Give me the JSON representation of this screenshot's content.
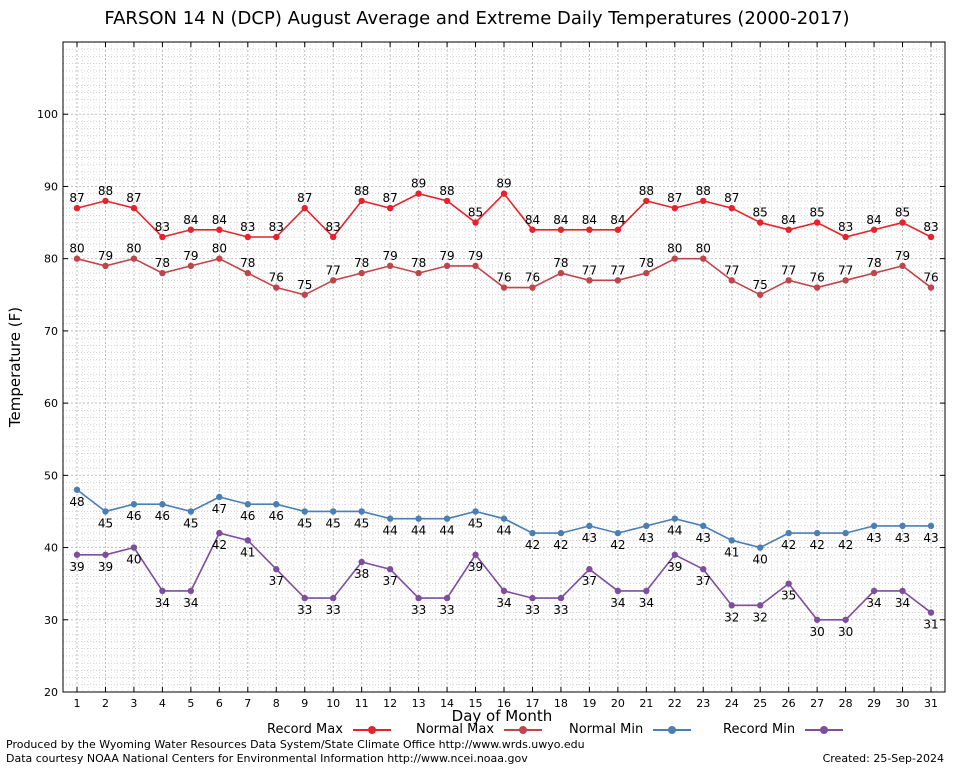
{
  "chart_data": {
    "type": "line",
    "title": "FARSON 14 N (DCP) August Average and Extreme Daily Temperatures (2000-2017)",
    "xlabel": "Day of Month",
    "ylabel": "Temperature (F)",
    "ylim": [
      20,
      110
    ],
    "yticks": [
      20,
      30,
      40,
      50,
      60,
      70,
      80,
      90,
      100
    ],
    "grid": true,
    "x": [
      1,
      2,
      3,
      4,
      5,
      6,
      7,
      8,
      9,
      10,
      11,
      12,
      13,
      14,
      15,
      16,
      17,
      18,
      19,
      20,
      21,
      22,
      23,
      24,
      25,
      26,
      27,
      28,
      29,
      30,
      31
    ],
    "series": [
      {
        "name": "Record Max",
        "color": "#e8212b",
        "values": [
          87,
          88,
          87,
          83,
          84,
          84,
          83,
          83,
          87,
          83,
          88,
          87,
          89,
          88,
          85,
          89,
          84,
          84,
          84,
          84,
          88,
          87,
          88,
          87,
          85,
          84,
          85,
          83,
          84,
          85,
          83
        ]
      },
      {
        "name": "Normal Max",
        "color": "#c0454a",
        "values": [
          80,
          79,
          80,
          78,
          79,
          80,
          78,
          76,
          75,
          77,
          78,
          79,
          78,
          79,
          79,
          76,
          76,
          78,
          77,
          77,
          78,
          80,
          80,
          77,
          75,
          77,
          76,
          77,
          78,
          79,
          76
        ]
      },
      {
        "name": "Normal Min",
        "color": "#4a7fb5",
        "values": [
          48,
          45,
          46,
          46,
          45,
          47,
          46,
          46,
          45,
          45,
          45,
          44,
          44,
          44,
          45,
          44,
          42,
          42,
          43,
          42,
          43,
          44,
          43,
          41,
          40,
          42,
          42,
          42,
          43,
          43,
          43
        ]
      },
      {
        "name": "Record Min",
        "color": "#7d4e9d",
        "values": [
          39,
          39,
          40,
          34,
          34,
          42,
          41,
          37,
          33,
          33,
          38,
          37,
          33,
          33,
          39,
          34,
          33,
          33,
          37,
          34,
          34,
          39,
          37,
          32,
          32,
          35,
          30,
          30,
          34,
          34,
          31
        ]
      }
    ]
  },
  "footer": {
    "produced_by": "Produced by the Wyoming Water Resources Data System/State Climate Office http://www.wrds.uwyo.edu",
    "courtesy": "Data courtesy NOAA National Centers for Environmental Information http://www.ncei.noaa.gov",
    "created": "Created:  25-Sep-2024"
  }
}
